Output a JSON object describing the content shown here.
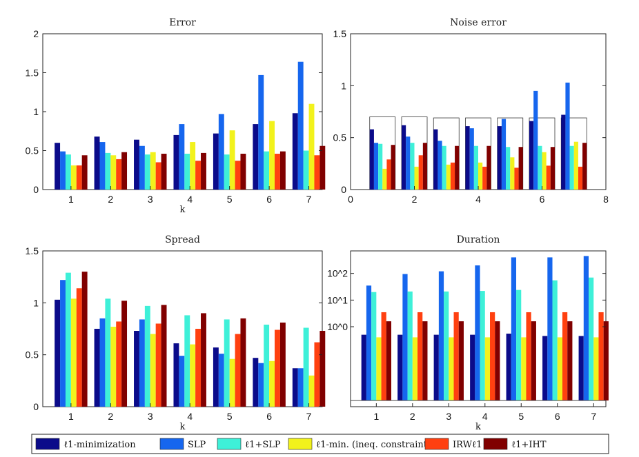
{
  "colors": [
    "#0b0b8a",
    "#1666ee",
    "#3ef0d8",
    "#f2f21c",
    "#ff4010",
    "#800000"
  ],
  "legend": {
    "items": [
      "ℓ1-minimization",
      "SLP",
      "ℓ1+SLP",
      "ℓ1-min. (ineq. constraint)",
      "IRWℓ1",
      "ℓ1+IHT"
    ]
  },
  "chart_data": [
    {
      "type": "bar",
      "title": "Error",
      "xlabel": "k",
      "ylabel": "",
      "categories": [
        "1",
        "2",
        "3",
        "4",
        "5",
        "6",
        "7"
      ],
      "ylim": [
        0,
        2
      ],
      "yticks": [
        "0",
        "0.5",
        "1",
        "1.5",
        "2"
      ],
      "series": [
        {
          "name": "ℓ1-minimization",
          "values": [
            0.6,
            0.68,
            0.64,
            0.7,
            0.72,
            0.84,
            0.98
          ]
        },
        {
          "name": "SLP",
          "values": [
            0.49,
            0.61,
            0.56,
            0.84,
            0.97,
            1.47,
            1.64
          ]
        },
        {
          "name": "ℓ1+SLP",
          "values": [
            0.45,
            0.47,
            0.45,
            0.46,
            0.45,
            0.49,
            0.5
          ]
        },
        {
          "name": "ℓ1-min. (ineq. constraint)",
          "values": [
            0.31,
            0.44,
            0.48,
            0.61,
            0.76,
            0.88,
            1.1
          ]
        },
        {
          "name": "IRWℓ1",
          "values": [
            0.31,
            0.39,
            0.35,
            0.37,
            0.37,
            0.46,
            0.44
          ]
        },
        {
          "name": "ℓ1+IHT",
          "values": [
            0.44,
            0.48,
            0.46,
            0.47,
            0.46,
            0.49,
            0.56
          ]
        }
      ]
    },
    {
      "type": "bar",
      "title": "Noise error",
      "xlabel": "",
      "ylabel": "",
      "categories": [
        1,
        2,
        3,
        4,
        5,
        6,
        7
      ],
      "xlim": [
        0,
        8
      ],
      "xticks": [
        "0",
        "2",
        "4",
        "6",
        "8"
      ],
      "ylim": [
        0,
        1.5
      ],
      "yticks": [
        "0",
        "0.5",
        "1",
        "1.5"
      ],
      "reference_values": [
        0.7,
        0.7,
        0.69,
        0.69,
        0.69,
        0.69,
        0.69
      ],
      "series": [
        {
          "name": "ℓ1-minimization",
          "values": [
            0.58,
            0.62,
            0.58,
            0.61,
            0.61,
            0.66,
            0.72
          ]
        },
        {
          "name": "SLP",
          "values": [
            0.45,
            0.51,
            0.47,
            0.59,
            0.68,
            0.95,
            1.03
          ]
        },
        {
          "name": "ℓ1+SLP",
          "values": [
            0.44,
            0.45,
            0.42,
            0.42,
            0.41,
            0.42,
            0.42
          ]
        },
        {
          "name": "ℓ1-min. (ineq. constraint)",
          "values": [
            0.2,
            0.22,
            0.24,
            0.26,
            0.31,
            0.36,
            0.46
          ]
        },
        {
          "name": "IRWℓ1",
          "values": [
            0.29,
            0.33,
            0.26,
            0.22,
            0.21,
            0.23,
            0.22
          ]
        },
        {
          "name": "ℓ1+IHT",
          "values": [
            0.43,
            0.45,
            0.42,
            0.42,
            0.41,
            0.41,
            0.45
          ]
        }
      ]
    },
    {
      "type": "bar",
      "title": "Spread",
      "xlabel": "k",
      "ylabel": "",
      "categories": [
        "1",
        "2",
        "3",
        "4",
        "5",
        "6",
        "7"
      ],
      "ylim": [
        0,
        1.5
      ],
      "yticks": [
        "0",
        "0.5",
        "1",
        "1.5"
      ],
      "series": [
        {
          "name": "ℓ1-minimization",
          "values": [
            1.03,
            0.75,
            0.73,
            0.61,
            0.57,
            0.47,
            0.37
          ]
        },
        {
          "name": "SLP",
          "values": [
            1.22,
            0.85,
            0.84,
            0.49,
            0.51,
            0.42,
            0.37
          ]
        },
        {
          "name": "ℓ1+SLP",
          "values": [
            1.29,
            1.04,
            0.97,
            0.88,
            0.84,
            0.79,
            0.76
          ]
        },
        {
          "name": "ℓ1-min. (ineq. constraint)",
          "values": [
            1.04,
            0.77,
            0.7,
            0.6,
            0.46,
            0.44,
            0.3
          ]
        },
        {
          "name": "IRWℓ1",
          "values": [
            1.14,
            0.82,
            0.8,
            0.75,
            0.7,
            0.74,
            0.62
          ]
        },
        {
          "name": "ℓ1+IHT",
          "values": [
            1.3,
            1.02,
            0.98,
            0.9,
            0.85,
            0.81,
            0.73
          ]
        }
      ]
    },
    {
      "type": "bar",
      "title": "Duration",
      "xlabel": "k",
      "ylabel": "",
      "scale": "log",
      "categories": [
        "1",
        "2",
        "3",
        "4",
        "5",
        "6",
        "7"
      ],
      "ylim": [
        0.001,
        700
      ],
      "yticks": [
        {
          "value": 1,
          "label": "10^0"
        },
        {
          "value": 10,
          "label": "10^1"
        },
        {
          "value": 100,
          "label": "10^2"
        }
      ],
      "series": [
        {
          "name": "ℓ1-minimization",
          "values": [
            0.5,
            0.5,
            0.5,
            0.5,
            0.55,
            0.45,
            0.45
          ]
        },
        {
          "name": "SLP",
          "values": [
            35,
            95,
            120,
            200,
            400,
            400,
            450
          ]
        },
        {
          "name": "ℓ1+SLP",
          "values": [
            20,
            21,
            21,
            22,
            24,
            55,
            70
          ]
        },
        {
          "name": "ℓ1-min. (ineq. constraint)",
          "values": [
            0.4,
            0.4,
            0.4,
            0.4,
            0.4,
            0.4,
            0.4
          ]
        },
        {
          "name": "IRWℓ1",
          "values": [
            3.5,
            3.5,
            3.5,
            3.5,
            3.5,
            3.5,
            3.5
          ]
        },
        {
          "name": "ℓ1+IHT",
          "values": [
            1.6,
            1.6,
            1.6,
            1.6,
            1.6,
            1.6,
            1.6
          ]
        }
      ]
    }
  ]
}
